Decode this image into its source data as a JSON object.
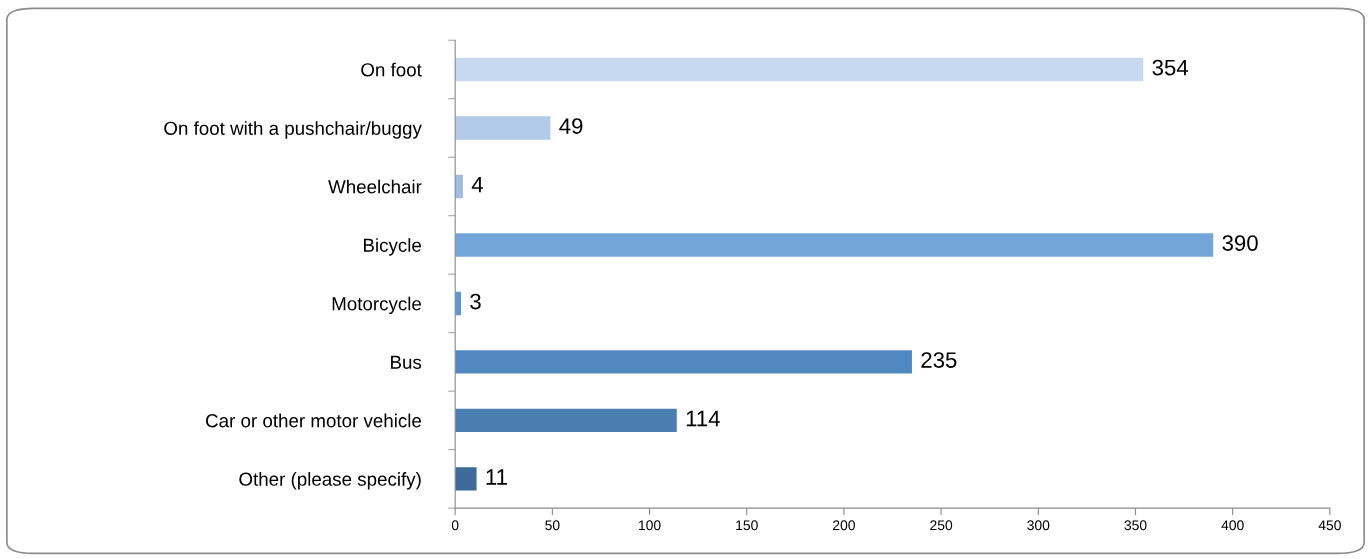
{
  "chart_data": {
    "type": "bar",
    "orientation": "horizontal",
    "categories": [
      "On foot",
      "On foot with a pushchair/buggy",
      "Wheelchair",
      "Bicycle",
      "Motorcycle",
      "Bus",
      "Car or other motor vehicle",
      "Other (please specify)"
    ],
    "values": [
      354,
      49,
      4,
      390,
      3,
      235,
      114,
      11
    ],
    "colors": [
      "#c6d9f1",
      "#b3cbe9",
      "#9fbde3",
      "#72a6d9",
      "#5f98d2",
      "#5089c2",
      "#4a7eb0",
      "#3d6a9a"
    ],
    "xlim": [
      0,
      450
    ],
    "xticks": [
      0,
      50,
      100,
      150,
      200,
      250,
      300,
      350,
      400,
      450
    ],
    "data_labels": true,
    "grid": false,
    "legend": false
  }
}
